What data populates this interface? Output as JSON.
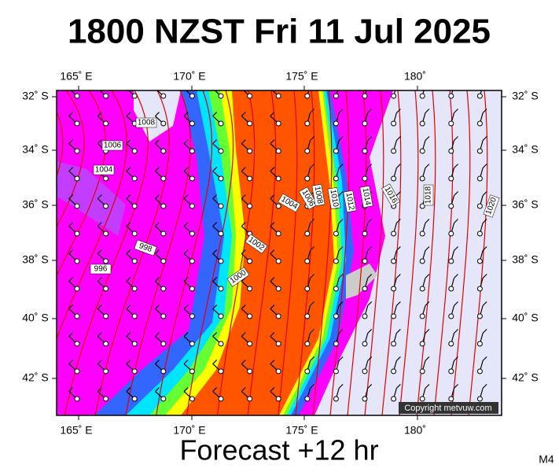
{
  "header": {
    "title": "1800 NZST Fri 11 Jul 2025"
  },
  "axes": {
    "longitudes": [
      "165˚ E",
      "170˚ E",
      "175˚ E",
      "180˚"
    ],
    "latitudes": [
      "32˚ S",
      "34˚ S",
      "36˚ S",
      "38˚ S",
      "40˚ S",
      "42˚ S"
    ]
  },
  "isobar_labels": [
    "1008",
    "1006",
    "1004",
    "998",
    "996",
    "1000",
    "1002",
    "1004",
    "1006",
    "1008",
    "1010",
    "1012",
    "1014",
    "1016",
    "1018",
    "1020"
  ],
  "copyright": "Copyright metvuw.com",
  "footer": {
    "forecast": "Forecast +12 hr",
    "model": "M4"
  }
}
